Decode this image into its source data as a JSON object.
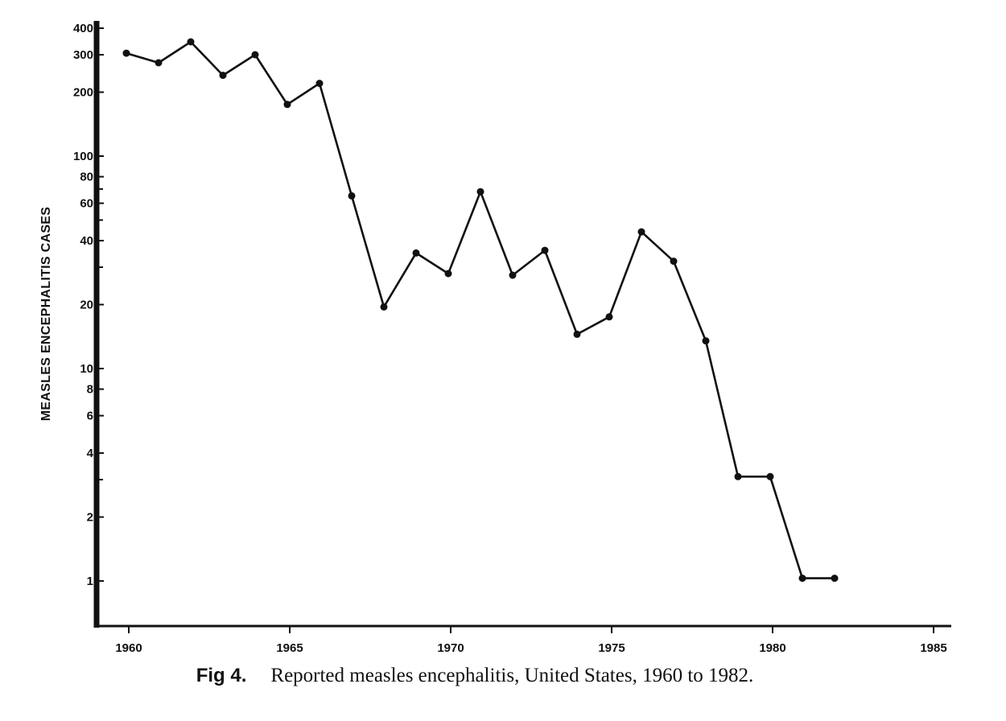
{
  "chart_data": {
    "type": "line",
    "title": "",
    "ylabel": "MEASLES ENCEPHALITIS CASES",
    "xlabel": "",
    "yscale": "log",
    "ylim": [
      0.62,
      430
    ],
    "xlim": [
      1959,
      1985.2
    ],
    "x_ticks": [
      1960,
      1965,
      1970,
      1975,
      1980,
      1985
    ],
    "y_tick_labels": [
      {
        "value": 1,
        "label": "1"
      },
      {
        "value": 2,
        "label": "2"
      },
      {
        "value": 4,
        "label": "4"
      },
      {
        "value": 6,
        "label": "6"
      },
      {
        "value": 8,
        "label": "8"
      },
      {
        "value": 10,
        "label": "10"
      },
      {
        "value": 20,
        "label": "20"
      },
      {
        "value": 40,
        "label": "40"
      },
      {
        "value": 60,
        "label": "60"
      },
      {
        "value": 80,
        "label": "80"
      },
      {
        "value": 100,
        "label": "100"
      },
      {
        "value": 200,
        "label": "200"
      },
      {
        "value": 300,
        "label": "300"
      },
      {
        "value": 400,
        "label": "400"
      }
    ],
    "y_minor_ticks": [
      3,
      30,
      50,
      70
    ],
    "x": [
      1960,
      1961,
      1962,
      1963,
      1964,
      1965,
      1966,
      1967,
      1968,
      1969,
      1970,
      1971,
      1972,
      1973,
      1974,
      1975,
      1976,
      1977,
      1978,
      1979,
      1980,
      1981,
      1982
    ],
    "series": [
      {
        "values": [
          305,
          275,
          345,
          240,
          300,
          175,
          220,
          65,
          19.5,
          35,
          28,
          68,
          27.5,
          36,
          14.5,
          17.5,
          44,
          32,
          13.5,
          3.1,
          3.1,
          1.03,
          1.03
        ]
      }
    ],
    "grid": false,
    "legend": "none"
  },
  "caption": {
    "fig_label": "Fig 4.",
    "text": "Reported measles encephalitis, United States, 1960 to 1982."
  }
}
